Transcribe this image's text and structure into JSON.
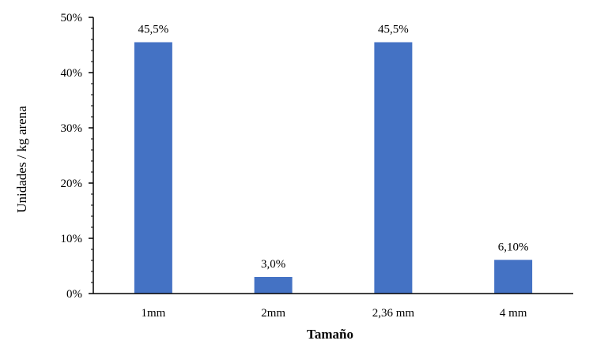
{
  "chart_data": {
    "type": "bar",
    "categories": [
      "1mm",
      "2mm",
      "2,36 mm",
      "4 mm"
    ],
    "values": [
      45.5,
      3.0,
      45.5,
      6.1
    ],
    "data_labels": [
      "45,5%",
      "3,0%",
      "45,5%",
      "6,10%"
    ],
    "xlabel": "Tamaño",
    "ylabel": "Unidades / kg arena",
    "ylim": [
      0,
      50
    ],
    "yticks": [
      0,
      10,
      20,
      30,
      40,
      50
    ],
    "ytick_labels": [
      "0%",
      "10%",
      "20%",
      "30%",
      "40%",
      "50%"
    ],
    "grid": false,
    "legend": "none",
    "bar_color": "#4472C4"
  }
}
